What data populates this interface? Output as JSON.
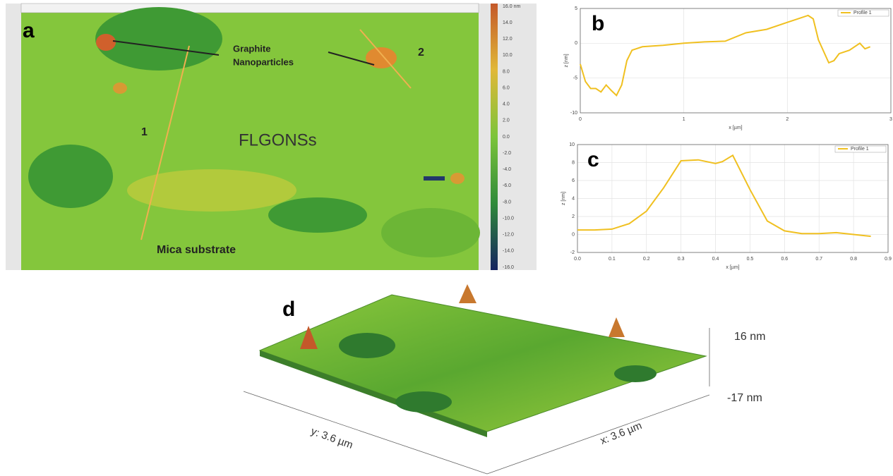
{
  "panel_a": {
    "label": "a",
    "annotations": [
      "Graphite",
      "Nanoparticles",
      "FLGONSs",
      "1",
      "2",
      "Mica substrate"
    ],
    "colorbar": [
      "16.0 nm",
      "14.0",
      "12.0",
      "10.0",
      "8.0",
      "6.0",
      "4.0",
      "2.0",
      "0.0",
      "-2.0",
      "-4.0",
      "-6.0",
      "-8.0",
      "-10.0",
      "-12.0",
      "-14.0",
      "-16.0"
    ]
  },
  "chart_data": [
    {
      "type": "line",
      "panel": "b",
      "xlabel": "x [µm]",
      "ylabel": "z [nm]",
      "x": [
        0,
        0.05,
        0.1,
        0.15,
        0.2,
        0.25,
        0.3,
        0.35,
        0.4,
        0.45,
        0.5,
        0.6,
        0.8,
        1.0,
        1.2,
        1.4,
        1.6,
        1.8,
        2.0,
        2.1,
        2.2,
        2.25,
        2.3,
        2.4,
        2.45,
        2.5,
        2.6,
        2.7,
        2.75,
        2.8
      ],
      "series": [
        {
          "name": "Profile 1",
          "color": "#f0c020",
          "values": [
            -3,
            -5.5,
            -6.5,
            -6.5,
            -7,
            -6,
            -6.8,
            -7.5,
            -6,
            -2.5,
            -1,
            -0.5,
            -0.3,
            0,
            0.2,
            0.3,
            1.5,
            2,
            3,
            3.5,
            4,
            3.5,
            0.5,
            -2.8,
            -2.5,
            -1.5,
            -1,
            0,
            -0.8,
            -0.5
          ]
        }
      ],
      "xlim": [
        0,
        3
      ],
      "ylim": [
        -10,
        5
      ],
      "xticks": [
        0,
        1,
        2,
        3
      ],
      "yticks": [
        -10,
        -5,
        0,
        5
      ],
      "grid": true,
      "legend": "upper right"
    },
    {
      "type": "line",
      "panel": "c",
      "xlabel": "x [µm]",
      "ylabel": "z [nm]",
      "x": [
        0,
        0.05,
        0.1,
        0.15,
        0.2,
        0.25,
        0.3,
        0.35,
        0.4,
        0.42,
        0.45,
        0.5,
        0.55,
        0.6,
        0.65,
        0.7,
        0.75,
        0.8,
        0.85
      ],
      "series": [
        {
          "name": "Profile 1",
          "color": "#f0c020",
          "values": [
            0.5,
            0.5,
            0.6,
            1.2,
            2.6,
            5.2,
            8.2,
            8.3,
            7.9,
            8.1,
            8.8,
            5,
            1.5,
            0.4,
            0.1,
            0.1,
            0.2,
            0,
            -0.2
          ]
        }
      ],
      "xlim": [
        0,
        0.9
      ],
      "ylim": [
        -2,
        10
      ],
      "xticks": [
        {
          "value": 0,
          "label": "0.0"
        },
        0.1,
        0.2,
        0.3,
        0.4,
        0.5,
        0.6,
        0.7,
        0.8,
        0.9
      ],
      "yticks": [
        -2,
        0,
        2,
        4,
        6,
        8,
        10
      ],
      "grid": true,
      "legend": "upper right"
    }
  ],
  "panel_d": {
    "label": "d",
    "zmax": "16 nm",
    "zmin": "-17 nm",
    "yaxis": "y: 3.6 µm",
    "xaxis": "x: 3.6 µm"
  }
}
